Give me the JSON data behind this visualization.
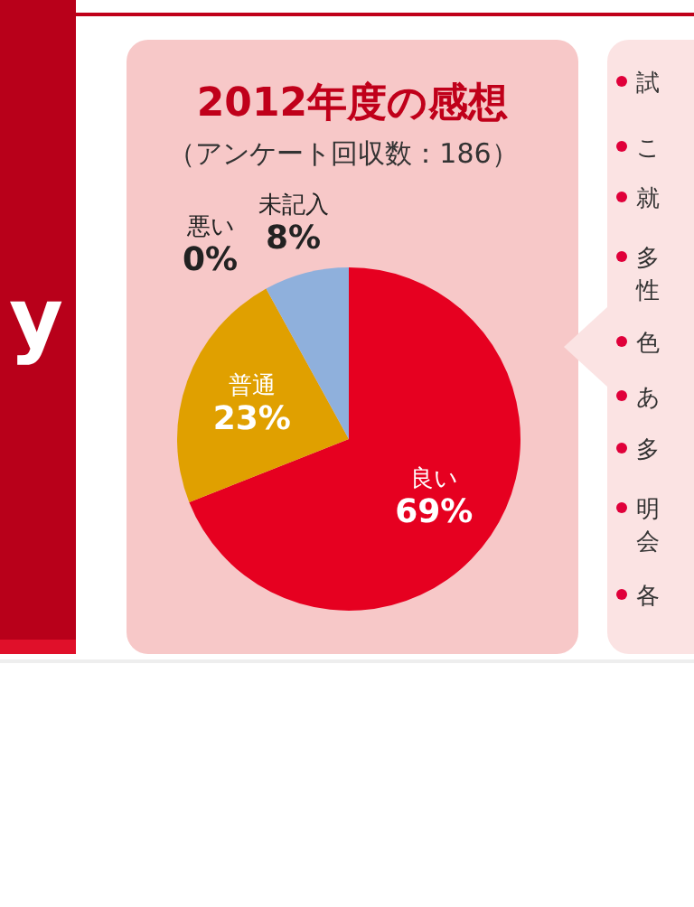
{
  "chart_data": [
    {
      "type": "pie",
      "title": "2012年度の感想",
      "subtitle": "（アンケート回収数：186）",
      "categories": [
        "良い",
        "普通",
        "悪い",
        "未記入"
      ],
      "values": [
        69,
        23,
        0,
        8
      ],
      "value_labels": [
        "69%",
        "23%",
        "0%",
        "8%"
      ],
      "colors": [
        "#e60020",
        "#e0a000",
        "#e0a000",
        "#8fb0dc"
      ]
    },
    {
      "type": "other",
      "annotations": [
        "試",
        "こ",
        "就",
        "多",
        "性",
        "色",
        "あ",
        "多",
        "明",
        "会",
        "各"
      ]
    },
    {
      "type": "other",
      "annotations": [
        "y"
      ]
    }
  ]
}
